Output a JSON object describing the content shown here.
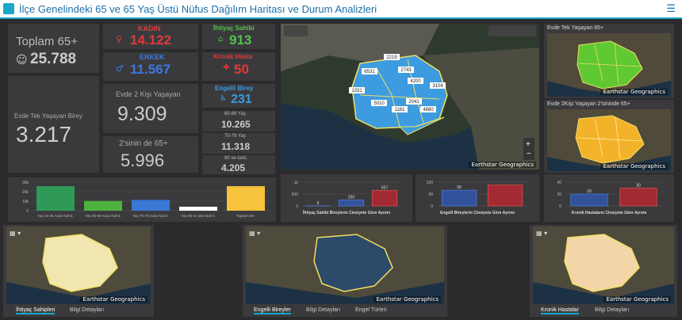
{
  "header": {
    "title": "İlçe Genelindeki 65 ve 65 Yaş Üstü Nüfus Dağılım Haritası ve Durum Analizleri"
  },
  "total": {
    "label": "Toplam 65+",
    "value": "25.788"
  },
  "kadin": {
    "label": "KADIN",
    "value": "14.122"
  },
  "erkek": {
    "label": "ERKEK",
    "value": "11.567"
  },
  "ihtiyac": {
    "label": "İhtiyaç Sahibi",
    "value": "913"
  },
  "kronik": {
    "label": "Kronik Hasta",
    "value": "50"
  },
  "engelli": {
    "label": "Engelli Birey",
    "value": "231"
  },
  "evde_tek": {
    "label": "Evde Tek Yaşayan Birey",
    "value": "3.217"
  },
  "evde_iki": {
    "label": "Evde 2 Kişi Yaşayan",
    "value": "9.309"
  },
  "ikisi_65": {
    "label": "2'sinin de 65+",
    "value": "5.996"
  },
  "age_groups": [
    {
      "label": "65-69 Yaş",
      "value": "10.265"
    },
    {
      "label": "70-79 Yaş",
      "value": "11.318"
    },
    {
      "label": "80 ve üstü",
      "value": "4.205"
    }
  ],
  "maps": {
    "main_attr": "Earthstar Geographics",
    "main_labels": [
      "2219",
      "6531",
      "2743",
      "4200",
      "3104",
      "1181",
      "1331",
      "5010",
      "2041",
      "4880"
    ],
    "tr1_title": "Evde Tek Yaşayan 65+",
    "tr2_title": "Evde 2Kişi Yaşayan 2'sininde 65+",
    "attr": "Earthstar Geographics"
  },
  "chart_data": [
    {
      "type": "bar",
      "title": "",
      "categories": [
        "Yaş 25-25 Arası Nüf.S.",
        "Yaş 65-69 Arası Nüf.S.",
        "Yaş 70-79 Arası Nüf.S.",
        "Yaş 80 ve üstü Nüf.S.",
        "Toplam 65+"
      ],
      "values": [
        25788,
        10265,
        11318,
        4205,
        25788
      ],
      "yticks": [
        "30k",
        "20k",
        "10k",
        "0"
      ],
      "ylim": [
        0,
        30000
      ],
      "colors": [
        "#2f9a58",
        "#4db23f",
        "#3a78d6",
        "#ffffff",
        "#f7c33c"
      ]
    },
    {
      "type": "bar",
      "title": "İhtiyaç Sahibi Bireylerin Cinsiyete Göre Ayrımı",
      "values": [
        6,
        250,
        657
      ],
      "labels": [
        "6",
        "250",
        "657"
      ],
      "yticks": [
        "1k",
        "500",
        "0"
      ],
      "ylim": [
        0,
        1000
      ]
    },
    {
      "type": "bar",
      "title": "Engelli Bireylerin Cinsiyete Göre Ayrımı",
      "values": [
        99,
        132
      ],
      "labels": [
        "99",
        ""
      ],
      "yticks": [
        "100",
        "50",
        "0"
      ],
      "ylim": [
        0,
        150
      ]
    },
    {
      "type": "bar",
      "title": "Kronik Hastaların Cinsiyete Göre Ayrımı",
      "values": [
        20,
        30
      ],
      "labels": [
        "20",
        "30"
      ],
      "yticks": [
        "40",
        "20",
        "0"
      ],
      "ylim": [
        0,
        40
      ]
    }
  ],
  "bottom": {
    "p1_tabs": [
      "İhtiyaç Sahipleri",
      "Bilgi Detayları"
    ],
    "p2_tabs": [
      "Engelli Bireyler",
      "Bilgi Detayları",
      "Engel Türleri"
    ],
    "p3_tabs": [
      "Kronik Hastalar",
      "Bilgi Detayları"
    ]
  }
}
